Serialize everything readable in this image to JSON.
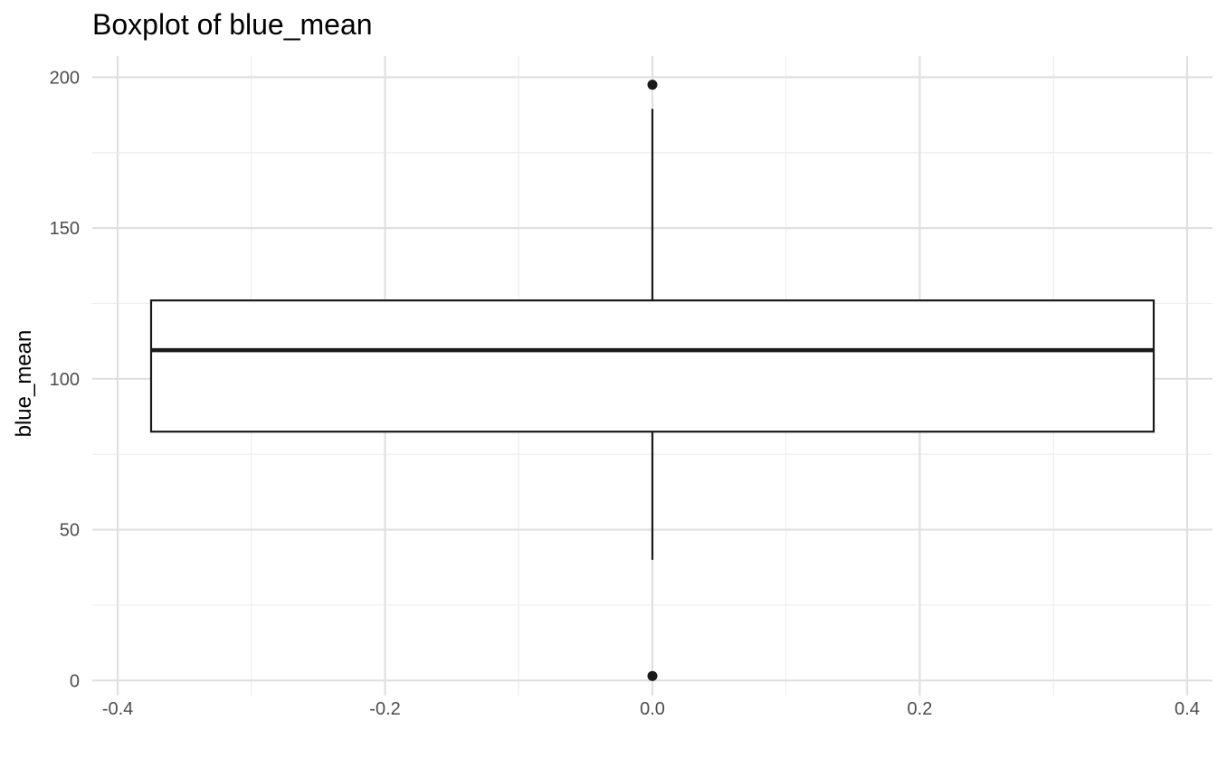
{
  "chart_data": {
    "type": "boxplot",
    "title": "Boxplot of blue_mean",
    "ylabel": "blue_mean",
    "xlabel": "",
    "x_ticks": [
      "-0.4",
      "-0.2",
      "0.0",
      "0.2",
      "0.4"
    ],
    "x_tick_values": [
      -0.4,
      -0.2,
      0.0,
      0.2,
      0.4
    ],
    "y_ticks": [
      "0",
      "50",
      "100",
      "150",
      "200"
    ],
    "y_tick_values": [
      0,
      50,
      100,
      150,
      200
    ],
    "xlim": [
      -0.419,
      0.419
    ],
    "ylim": [
      -5,
      207
    ],
    "grid": true,
    "box": {
      "x": 0.0,
      "box_left": -0.375,
      "box_right": 0.375,
      "whisker_low": 40,
      "q1": 82.5,
      "median": 109.5,
      "q3": 126,
      "whisker_high": 189.5
    },
    "outliers": [
      197.5,
      1.5
    ],
    "colors": {
      "major_grid": "#e0e0e0",
      "minor_grid": "#eeeeee",
      "box_stroke": "#1a1a1a",
      "point": "#1a1a1a"
    }
  }
}
